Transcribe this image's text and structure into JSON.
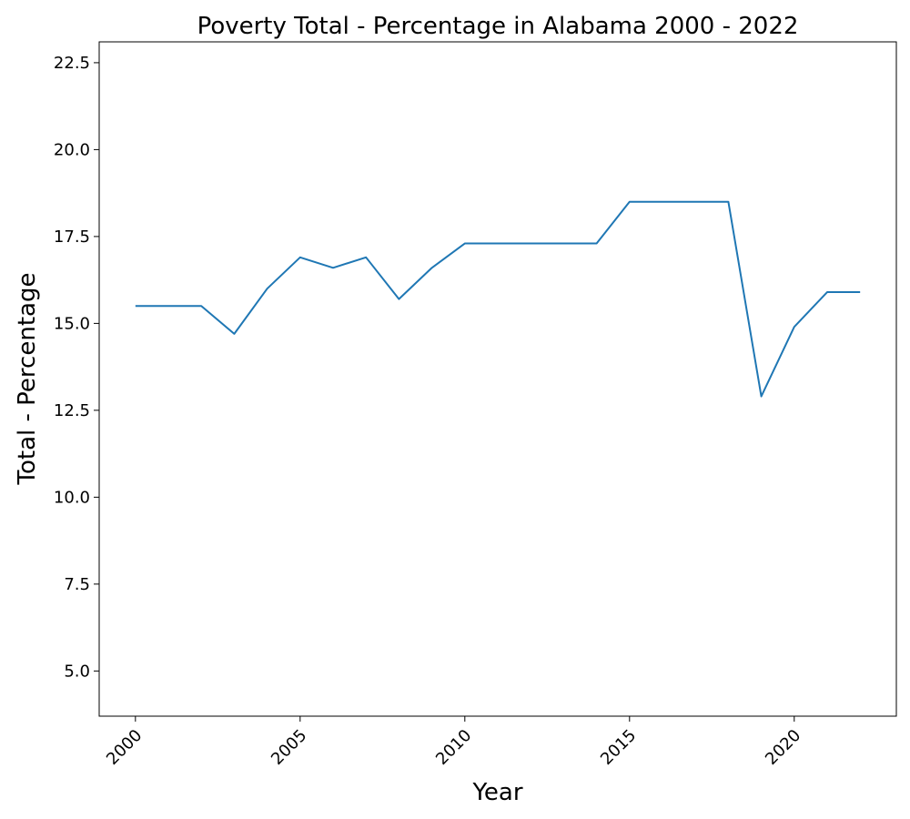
{
  "chart_data": {
    "type": "line",
    "title": "Poverty Total - Percentage in Alabama 2000 - 2022",
    "xlabel": "Year",
    "ylabel": "Total - Percentage",
    "x_ticks": [
      "2000",
      "2005",
      "2010",
      "2015",
      "2020"
    ],
    "y_ticks": [
      "5.0",
      "7.5",
      "10.0",
      "12.5",
      "15.0",
      "17.5",
      "20.0",
      "22.5"
    ],
    "xlim": [
      1998.9,
      2023.1
    ],
    "ylim": [
      3.7,
      23.1
    ],
    "grid": false,
    "color": "#1f77b4",
    "series": [
      {
        "x": [
          2000,
          2001,
          2002,
          2003,
          2004,
          2005,
          2006,
          2007,
          2008,
          2009,
          2010,
          2011,
          2012,
          2013,
          2014,
          2015,
          2016,
          2017,
          2018,
          2019,
          2020,
          2021,
          2022
        ],
        "values": [
          15.5,
          15.5,
          15.5,
          14.7,
          16.0,
          16.9,
          16.6,
          16.9,
          15.7,
          16.6,
          17.3,
          17.3,
          17.3,
          17.3,
          17.3,
          18.5,
          18.5,
          18.5,
          18.5,
          12.9,
          14.9,
          15.9,
          15.9
        ]
      }
    ]
  }
}
